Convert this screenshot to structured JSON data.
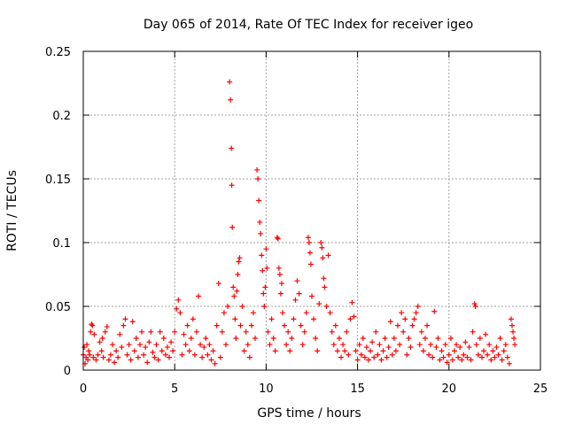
{
  "chart_data": {
    "type": "scatter",
    "title": "Day 065 of 2014, Rate Of TEC Index for receiver igeo",
    "xlabel": "GPS time / hours",
    "ylabel": "ROTI / TECUs",
    "xlim": [
      0,
      25
    ],
    "ylim": [
      0,
      0.25
    ],
    "grid": true,
    "xticks": [
      0,
      5,
      10,
      15,
      20,
      25
    ],
    "yticks": [
      0,
      0.05,
      0.1,
      0.15,
      0.2,
      0.25
    ],
    "xtick_labels": [
      "0",
      "5",
      "10",
      "15",
      "20",
      "25"
    ],
    "ytick_labels": [
      "0",
      "0.05",
      "0.1",
      "0.15",
      "0.2",
      "0.25"
    ],
    "marker": "+",
    "series": [
      {
        "name": "ROTI",
        "color": "#ff0000",
        "points": [
          [
            0.0,
            0.012
          ],
          [
            0.05,
            0.018
          ],
          [
            0.1,
            0.005
          ],
          [
            0.15,
            0.01
          ],
          [
            0.2,
            0.02
          ],
          [
            0.25,
            0.008
          ],
          [
            0.3,
            0.015
          ],
          [
            0.35,
            0.012
          ],
          [
            0.4,
            0.03
          ],
          [
            0.45,
            0.036
          ],
          [
            0.5,
            0.035
          ],
          [
            0.55,
            0.01
          ],
          [
            0.6,
            0.028
          ],
          [
            0.7,
            0.008
          ],
          [
            0.8,
            0.012
          ],
          [
            0.9,
            0.022
          ],
          [
            1.0,
            0.015
          ],
          [
            1.05,
            0.025
          ],
          [
            1.1,
            0.01
          ],
          [
            1.2,
            0.03
          ],
          [
            1.3,
            0.034
          ],
          [
            1.4,
            0.008
          ],
          [
            1.5,
            0.012
          ],
          [
            1.6,
            0.02
          ],
          [
            1.7,
            0.006
          ],
          [
            1.8,
            0.015
          ],
          [
            1.9,
            0.01
          ],
          [
            2.0,
            0.028
          ],
          [
            2.1,
            0.018
          ],
          [
            2.2,
            0.035
          ],
          [
            2.3,
            0.04
          ],
          [
            2.4,
            0.012
          ],
          [
            2.5,
            0.02
          ],
          [
            2.6,
            0.008
          ],
          [
            2.7,
            0.038
          ],
          [
            2.8,
            0.015
          ],
          [
            2.9,
            0.025
          ],
          [
            3.0,
            0.01
          ],
          [
            3.1,
            0.02
          ],
          [
            3.2,
            0.03
          ],
          [
            3.3,
            0.012
          ],
          [
            3.4,
            0.018
          ],
          [
            3.5,
            0.006
          ],
          [
            3.6,
            0.022
          ],
          [
            3.7,
            0.03
          ],
          [
            3.8,
            0.014
          ],
          [
            3.9,
            0.01
          ],
          [
            4.0,
            0.02
          ],
          [
            4.1,
            0.008
          ],
          [
            4.2,
            0.03
          ],
          [
            4.3,
            0.015
          ],
          [
            4.4,
            0.025
          ],
          [
            4.5,
            0.012
          ],
          [
            4.6,
            0.018
          ],
          [
            4.7,
            0.01
          ],
          [
            4.8,
            0.022
          ],
          [
            4.9,
            0.015
          ],
          [
            5.0,
            0.03
          ],
          [
            5.1,
            0.048
          ],
          [
            5.2,
            0.055
          ],
          [
            5.3,
            0.045
          ],
          [
            5.4,
            0.012
          ],
          [
            5.5,
            0.028
          ],
          [
            5.6,
            0.02
          ],
          [
            5.7,
            0.035
          ],
          [
            5.8,
            0.015
          ],
          [
            5.9,
            0.025
          ],
          [
            6.0,
            0.04
          ],
          [
            6.1,
            0.012
          ],
          [
            6.2,
            0.03
          ],
          [
            6.3,
            0.058
          ],
          [
            6.4,
            0.02
          ],
          [
            6.5,
            0.01
          ],
          [
            6.6,
            0.018
          ],
          [
            6.7,
            0.025
          ],
          [
            6.8,
            0.012
          ],
          [
            6.9,
            0.02
          ],
          [
            7.0,
            0.008
          ],
          [
            7.1,
            0.015
          ],
          [
            7.2,
            0.005
          ],
          [
            7.3,
            0.035
          ],
          [
            7.4,
            0.068
          ],
          [
            7.5,
            0.01
          ],
          [
            7.6,
            0.03
          ],
          [
            7.7,
            0.045
          ],
          [
            7.8,
            0.02
          ],
          [
            7.9,
            0.05
          ],
          [
            8.0,
            0.226
          ],
          [
            8.05,
            0.212
          ],
          [
            8.1,
            0.174
          ],
          [
            8.12,
            0.145
          ],
          [
            8.15,
            0.112
          ],
          [
            8.2,
            0.065
          ],
          [
            8.25,
            0.058
          ],
          [
            8.3,
            0.04
          ],
          [
            8.35,
            0.025
          ],
          [
            8.4,
            0.062
          ],
          [
            8.45,
            0.075
          ],
          [
            8.5,
            0.085
          ],
          [
            8.55,
            0.088
          ],
          [
            8.6,
            0.035
          ],
          [
            8.7,
            0.05
          ],
          [
            8.8,
            0.015
          ],
          [
            8.9,
            0.03
          ],
          [
            9.0,
            0.02
          ],
          [
            9.1,
            0.01
          ],
          [
            9.2,
            0.035
          ],
          [
            9.3,
            0.045
          ],
          [
            9.4,
            0.025
          ],
          [
            9.5,
            0.157
          ],
          [
            9.55,
            0.15
          ],
          [
            9.6,
            0.133
          ],
          [
            9.65,
            0.116
          ],
          [
            9.7,
            0.107
          ],
          [
            9.75,
            0.09
          ],
          [
            9.8,
            0.078
          ],
          [
            9.85,
            0.06
          ],
          [
            9.9,
            0.05
          ],
          [
            9.95,
            0.065
          ],
          [
            10.0,
            0.095
          ],
          [
            10.05,
            0.08
          ],
          [
            10.1,
            0.03
          ],
          [
            10.2,
            0.02
          ],
          [
            10.3,
            0.04
          ],
          [
            10.4,
            0.025
          ],
          [
            10.5,
            0.015
          ],
          [
            10.6,
            0.104
          ],
          [
            10.65,
            0.103
          ],
          [
            10.7,
            0.08
          ],
          [
            10.75,
            0.075
          ],
          [
            10.8,
            0.06
          ],
          [
            10.85,
            0.068
          ],
          [
            10.9,
            0.045
          ],
          [
            11.0,
            0.035
          ],
          [
            11.1,
            0.02
          ],
          [
            11.2,
            0.03
          ],
          [
            11.3,
            0.015
          ],
          [
            11.4,
            0.025
          ],
          [
            11.5,
            0.04
          ],
          [
            11.6,
            0.055
          ],
          [
            11.7,
            0.07
          ],
          [
            11.8,
            0.06
          ],
          [
            11.9,
            0.035
          ],
          [
            12.0,
            0.02
          ],
          [
            12.1,
            0.03
          ],
          [
            12.2,
            0.045
          ],
          [
            12.3,
            0.104
          ],
          [
            12.35,
            0.1
          ],
          [
            12.4,
            0.092
          ],
          [
            12.45,
            0.083
          ],
          [
            12.5,
            0.058
          ],
          [
            12.6,
            0.04
          ],
          [
            12.7,
            0.025
          ],
          [
            12.8,
            0.015
          ],
          [
            12.9,
            0.052
          ],
          [
            13.0,
            0.1
          ],
          [
            13.05,
            0.096
          ],
          [
            13.1,
            0.088
          ],
          [
            13.15,
            0.072
          ],
          [
            13.2,
            0.065
          ],
          [
            13.3,
            0.05
          ],
          [
            13.4,
            0.09
          ],
          [
            13.5,
            0.045
          ],
          [
            13.6,
            0.03
          ],
          [
            13.7,
            0.02
          ],
          [
            13.8,
            0.035
          ],
          [
            13.9,
            0.015
          ],
          [
            14.0,
            0.025
          ],
          [
            14.1,
            0.01
          ],
          [
            14.2,
            0.02
          ],
          [
            14.3,
            0.015
          ],
          [
            14.4,
            0.03
          ],
          [
            14.5,
            0.012
          ],
          [
            14.6,
            0.04
          ],
          [
            14.7,
            0.053
          ],
          [
            14.8,
            0.042
          ],
          [
            14.9,
            0.015
          ],
          [
            15.0,
            0.008
          ],
          [
            15.1,
            0.02
          ],
          [
            15.2,
            0.012
          ],
          [
            15.3,
            0.025
          ],
          [
            15.4,
            0.01
          ],
          [
            15.5,
            0.018
          ],
          [
            15.6,
            0.008
          ],
          [
            15.7,
            0.015
          ],
          [
            15.8,
            0.022
          ],
          [
            15.9,
            0.01
          ],
          [
            16.0,
            0.03
          ],
          [
            16.1,
            0.012
          ],
          [
            16.2,
            0.02
          ],
          [
            16.3,
            0.008
          ],
          [
            16.4,
            0.015
          ],
          [
            16.5,
            0.025
          ],
          [
            16.6,
            0.01
          ],
          [
            16.7,
            0.018
          ],
          [
            16.8,
            0.038
          ],
          [
            16.9,
            0.012
          ],
          [
            17.0,
            0.025
          ],
          [
            17.1,
            0.015
          ],
          [
            17.2,
            0.035
          ],
          [
            17.3,
            0.02
          ],
          [
            17.4,
            0.045
          ],
          [
            17.5,
            0.03
          ],
          [
            17.6,
            0.04
          ],
          [
            17.7,
            0.012
          ],
          [
            17.8,
            0.025
          ],
          [
            17.9,
            0.018
          ],
          [
            18.0,
            0.035
          ],
          [
            18.1,
            0.04
          ],
          [
            18.2,
            0.045
          ],
          [
            18.3,
            0.05
          ],
          [
            18.4,
            0.02
          ],
          [
            18.5,
            0.03
          ],
          [
            18.6,
            0.015
          ],
          [
            18.7,
            0.025
          ],
          [
            18.8,
            0.035
          ],
          [
            18.9,
            0.012
          ],
          [
            19.0,
            0.02
          ],
          [
            19.1,
            0.01
          ],
          [
            19.2,
            0.046
          ],
          [
            19.3,
            0.018
          ],
          [
            19.4,
            0.025
          ],
          [
            19.5,
            0.008
          ],
          [
            19.6,
            0.015
          ],
          [
            19.7,
            0.01
          ],
          [
            19.8,
            0.02
          ],
          [
            19.9,
            0.006
          ],
          [
            20.0,
            0.012
          ],
          [
            20.1,
            0.025
          ],
          [
            20.2,
            0.008
          ],
          [
            20.3,
            0.015
          ],
          [
            20.4,
            0.02
          ],
          [
            20.5,
            0.01
          ],
          [
            20.6,
            0.018
          ],
          [
            20.7,
            0.008
          ],
          [
            20.8,
            0.012
          ],
          [
            20.9,
            0.022
          ],
          [
            21.0,
            0.01
          ],
          [
            21.1,
            0.018
          ],
          [
            21.2,
            0.008
          ],
          [
            21.3,
            0.03
          ],
          [
            21.4,
            0.052
          ],
          [
            21.45,
            0.05
          ],
          [
            21.5,
            0.02
          ],
          [
            21.6,
            0.012
          ],
          [
            21.7,
            0.025
          ],
          [
            21.8,
            0.01
          ],
          [
            21.9,
            0.015
          ],
          [
            22.0,
            0.028
          ],
          [
            22.1,
            0.012
          ],
          [
            22.2,
            0.02
          ],
          [
            22.3,
            0.008
          ],
          [
            22.4,
            0.015
          ],
          [
            22.5,
            0.01
          ],
          [
            22.6,
            0.018
          ],
          [
            22.7,
            0.012
          ],
          [
            22.8,
            0.025
          ],
          [
            22.9,
            0.008
          ],
          [
            23.0,
            0.015
          ],
          [
            23.1,
            0.02
          ],
          [
            23.2,
            0.01
          ],
          [
            23.3,
            0.005
          ],
          [
            23.4,
            0.04
          ],
          [
            23.45,
            0.035
          ],
          [
            23.5,
            0.03
          ],
          [
            23.55,
            0.025
          ],
          [
            23.6,
            0.02
          ]
        ]
      }
    ]
  }
}
